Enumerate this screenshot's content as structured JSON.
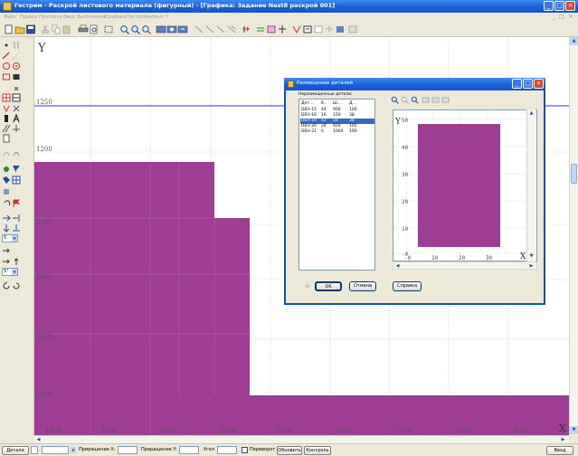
{
  "window": {
    "title": "Гестрим - Раскрой листового материала (фигурный) - [Графика: Задание Nest8 раскрой 001]",
    "controls": [
      "_",
      "□",
      "×"
    ]
  },
  "menu": {
    "items": [
      "Файл",
      "Правка",
      "Просмотр",
      "Ввод",
      "Выполнение",
      "Графика",
      "Настройка",
      "Окно",
      "?"
    ],
    "mdi_controls": [
      "_",
      "□",
      "×"
    ]
  },
  "toolbar": {
    "icons": [
      "new-file-icon",
      "open-file-icon",
      "save-icon",
      "cut-icon",
      "copy-icon",
      "paste-icon",
      "print-icon",
      "print-preview-icon",
      "select-icon",
      "zoom-in-icon",
      "zoom-out-icon",
      "zoom-fit-icon",
      "layer-icon",
      "layer-copy-icon",
      "layer-paste-icon",
      "line-icon",
      "line2-icon",
      "line3-icon",
      "line4-icon",
      "arrow-icon",
      "move-icon",
      "rotate-icon",
      "nest-icon",
      "nest-run-icon",
      "nest-step-icon",
      "stop-icon",
      "grid-icon",
      "info-icon"
    ]
  },
  "palette": {
    "combo_top": "5",
    "combo_bottom": "5°"
  },
  "canvas": {
    "y_axis_label": "Y",
    "x_axis_label": "X",
    "y_ticks": [
      "1250",
      "1200",
      "1150",
      "1100",
      "1050",
      "1000"
    ],
    "x_ticks": [
      "1850",
      "1900",
      "1950",
      "2000",
      "2050",
      "2100",
      "2150",
      "2200",
      "2250"
    ],
    "fill_color": "#9e3d94",
    "grid_color": "#c8c8c8",
    "reference_line_color": "#3344cc"
  },
  "dialog": {
    "title": "Размещение деталей",
    "controls": [
      "_",
      "□",
      "×"
    ],
    "list_label": "Неразмещенные детали:",
    "list_columns": [
      "Дет...",
      "К..",
      "Ш...",
      "Д..."
    ],
    "list_rows": [
      {
        "name": "DEH-15",
        "qty": "44",
        "w": "900",
        "l": "100"
      },
      {
        "name": "DEH-16",
        "qty": "16",
        "w": "150",
        "l": "38"
      },
      {
        "name": "DEH-19",
        "qty": "42",
        "w": "50",
        "l": "38"
      },
      {
        "name": "DEH-20",
        "qty": "24",
        "w": "920",
        "l": "105"
      },
      {
        "name": "DEH-21",
        "qty": "6",
        "w": "1000",
        "l": "100"
      }
    ],
    "selected_row": 2,
    "preview": {
      "y_label": "Y",
      "x_label": "X",
      "y_ticks": [
        "50",
        "40",
        "30",
        "20",
        "10",
        "-0"
      ],
      "x_ticks": [
        "-0",
        "10",
        "20",
        "30"
      ]
    },
    "ok_label": "OK",
    "cancel_label": "Отмена",
    "help_label": "Справка"
  },
  "status": {
    "details_label": "Детали",
    "incr_x_label": "Приращение X:",
    "incr_y_label": "Приращение Y:",
    "angle_label": "Угол",
    "flip_label": "Переворот",
    "refresh_label": "Обновить",
    "control_label": "Контроль",
    "input_label": "Ввод"
  }
}
